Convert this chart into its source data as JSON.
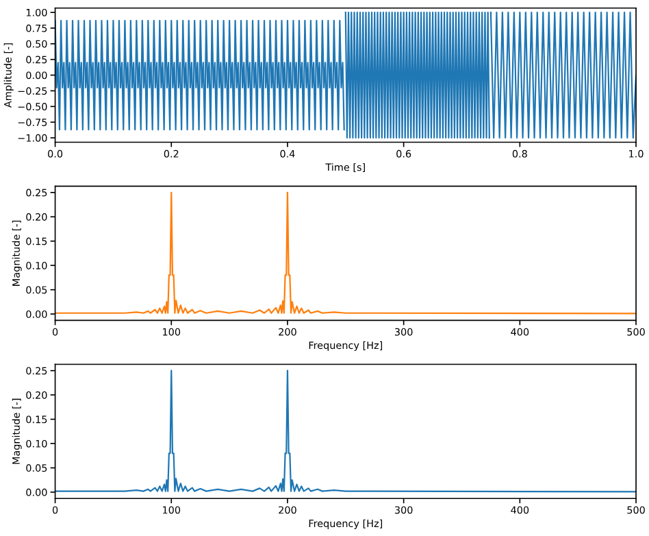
{
  "chart_data": [
    {
      "type": "line",
      "xlabel": "Time [s]",
      "ylabel": "Amplitude [-]",
      "xlim": [
        0,
        1
      ],
      "ylim": [
        -1.07,
        1.07
      ],
      "xticks": [
        {
          "value": 0,
          "label": "0.0"
        },
        {
          "value": 0.2,
          "label": "0.2"
        },
        {
          "value": 0.4,
          "label": "0.4"
        },
        {
          "value": 0.6,
          "label": "0.6"
        },
        {
          "value": 0.8,
          "label": "0.8"
        },
        {
          "value": 1,
          "label": "1.0"
        }
      ],
      "yticks": [
        {
          "value": -1,
          "label": "−1.00"
        },
        {
          "value": -0.75,
          "label": "−0.75"
        },
        {
          "value": -0.5,
          "label": "−0.50"
        },
        {
          "value": -0.25,
          "label": "−0.25"
        },
        {
          "value": 0,
          "label": "0.00"
        },
        {
          "value": 0.25,
          "label": "0.25"
        },
        {
          "value": 0.5,
          "label": "0.50"
        },
        {
          "value": 0.75,
          "label": "0.75"
        },
        {
          "value": 1,
          "label": "1.00"
        }
      ],
      "grid": false,
      "series": [
        {
          "color": "#1f77b4",
          "x": [
            0,
            0.0025,
            0.005,
            0.0075,
            0.01,
            0.0125,
            0.015,
            0.0175,
            0.02,
            0.0225,
            0.025,
            0.0275,
            0.03,
            0.0325,
            0.035,
            0.0375,
            0.04,
            0.0425,
            0.045,
            0.0475,
            0.05,
            0.0525,
            0.055,
            0.0575,
            0.06,
            0.0625,
            0.065,
            0.0675,
            0.07,
            0.0725,
            0.075,
            0.0775,
            0.08,
            0.0825,
            0.085,
            0.0875,
            0.09,
            0.0925,
            0.095,
            0.0975,
            0.1,
            0.1025,
            0.105,
            0.1075,
            0.11,
            0.1125,
            0.115,
            0.1175,
            0.12,
            0.1225,
            0.125,
            0.1275,
            0.13,
            0.1325,
            0.135,
            0.1375,
            0.14,
            0.1425,
            0.145,
            0.1475,
            0.15,
            0.1525,
            0.155,
            0.1575,
            0.16,
            0.1625,
            0.165,
            0.1675,
            0.17,
            0.1725,
            0.175,
            0.1775,
            0.18,
            0.1825,
            0.185,
            0.1875,
            0.19,
            0.1925,
            0.195,
            0.1975,
            0.2,
            0.2025,
            0.205,
            0.2075,
            0.21,
            0.2125,
            0.215,
            0.2175,
            0.22,
            0.2225,
            0.225,
            0.2275,
            0.23,
            0.2325,
            0.235,
            0.2375,
            0.24,
            0.2425,
            0.245,
            0.2475,
            0.25,
            0.2525,
            0.255,
            0.2575,
            0.26,
            0.2625,
            0.265,
            0.2675,
            0.27,
            0.2725,
            0.275,
            0.2775,
            0.28,
            0.2825,
            0.285,
            0.2875,
            0.29,
            0.2925,
            0.295,
            0.2975,
            0.3,
            0.3025,
            0.305,
            0.3075,
            0.31,
            0.3125,
            0.315,
            0.3175,
            0.32,
            0.3225,
            0.325,
            0.3275,
            0.33,
            0.3325,
            0.335,
            0.3375,
            0.34,
            0.3425,
            0.345,
            0.3475,
            0.35,
            0.3525,
            0.355,
            0.3575,
            0.36,
            0.3625,
            0.365,
            0.3675,
            0.37,
            0.3725,
            0.375,
            0.3775,
            0.38,
            0.3825,
            0.385,
            0.3875,
            0.39,
            0.3925,
            0.395,
            0.3975,
            0.4,
            0.4025,
            0.405,
            0.4075,
            0.41,
            0.4125,
            0.415,
            0.4175,
            0.42,
            0.4225,
            0.425,
            0.4275,
            0.43,
            0.4325,
            0.435,
            0.4375,
            0.44,
            0.4425,
            0.445,
            0.4475,
            0.45,
            0.4525,
            0.455,
            0.4575,
            0.46,
            0.4625,
            0.465,
            0.4675,
            0.47,
            0.4725,
            0.475,
            0.4775,
            0.48,
            0.4825,
            0.485,
            0.4875,
            0.49,
            0.4925,
            0.495,
            0.4975
          ],
          "values": [
            0.87,
            -0.2,
            0.2,
            -0.87,
            0.87,
            -0.2,
            0.2,
            -0.87,
            0.87,
            -0.2,
            0.2,
            -0.87,
            0.87,
            -0.2,
            0.2,
            -0.87,
            0.87,
            -0.2,
            0.2,
            -0.87,
            0.87,
            -0.2,
            0.2,
            -0.87,
            0.87,
            -0.2,
            0.2,
            -0.87,
            0.87,
            -0.2,
            0.2,
            -0.87,
            0.87,
            -0.2,
            0.2,
            -0.87,
            0.87,
            -0.2,
            0.2,
            -0.87,
            0.87,
            -0.2,
            0.2,
            -0.87,
            0.87,
            -0.2,
            0.2,
            -0.87,
            0.87,
            -0.2,
            0.2,
            -0.87,
            0.87,
            -0.2,
            0.2,
            -0.87,
            0.87,
            -0.2,
            0.2,
            -0.87,
            0.87,
            -0.2,
            0.2,
            -0.87,
            0.87,
            -0.2,
            0.2,
            -0.87,
            0.87,
            -0.2,
            0.2,
            -0.87,
            0.87,
            -0.2,
            0.2,
            -0.87,
            0.87,
            -0.2,
            0.2,
            -0.87,
            0.87,
            -0.2,
            0.2,
            -0.87,
            0.87,
            -0.2,
            0.2,
            -0.87,
            0.87,
            -0.2,
            0.2,
            -0.87,
            0.87,
            -0.2,
            0.2,
            -0.87,
            0.87,
            -0.2,
            0.2,
            -0.87,
            0.87,
            -0.2,
            0.2,
            -0.87,
            0.87,
            -0.2,
            0.2,
            -0.87,
            0.87,
            -0.2,
            0.2,
            -0.87,
            0.87,
            -0.2,
            0.2,
            -0.87,
            0.87,
            -0.2,
            0.2,
            -0.87,
            0.87,
            -0.2,
            0.2,
            -0.87,
            0.87,
            -0.2,
            0.2,
            -0.87,
            0.87,
            -0.2,
            0.2,
            -0.87,
            0.87,
            -0.2,
            0.2,
            -0.87,
            0.87,
            -0.2,
            0.2,
            -0.87,
            0.87,
            -0.2,
            0.2,
            -0.87,
            0.87,
            -0.2,
            0.2,
            -0.87,
            0.87,
            -0.2,
            0.2,
            -0.87,
            0.87,
            -0.2,
            0.2,
            -0.87,
            0.87,
            -0.2,
            0.2,
            -0.87,
            0.87,
            -0.2,
            0.2,
            -0.87,
            0.87,
            -0.2,
            0.2,
            -0.87,
            0.87,
            -0.2,
            0.2,
            -0.87,
            0.87,
            -0.2,
            0.2,
            -0.87,
            0.87,
            -0.2,
            0.2,
            -0.87,
            0.87,
            -0.2,
            0.2,
            -0.87,
            0.87,
            -0.2,
            0.2,
            -0.87,
            0.87,
            -0.2,
            0.2,
            -0.87,
            0.87,
            -0.2,
            0.2,
            -0.87,
            0.87,
            -0.2,
            0.2,
            -0.87
          ]
        },
        {
          "color": "#1f77b4",
          "x": [
            0.5,
            0.5025,
            0.505,
            0.5075,
            0.51,
            0.5125,
            0.515,
            0.5175,
            0.52,
            0.5225,
            0.525,
            0.5275,
            0.53,
            0.5325,
            0.535,
            0.5375,
            0.54,
            0.5425,
            0.545,
            0.5475,
            0.55,
            0.5525,
            0.555,
            0.5575,
            0.56,
            0.5625,
            0.565,
            0.5675,
            0.57,
            0.5725,
            0.575,
            0.5775,
            0.58,
            0.5825,
            0.585,
            0.5875,
            0.59,
            0.5925,
            0.595,
            0.5975,
            0.6,
            0.6025,
            0.605,
            0.6075,
            0.61,
            0.6125,
            0.615,
            0.6175,
            0.62,
            0.6225,
            0.625,
            0.6275,
            0.63,
            0.6325,
            0.635,
            0.6375,
            0.64,
            0.6425,
            0.645,
            0.6475,
            0.65,
            0.6525,
            0.655,
            0.6575,
            0.66,
            0.6625,
            0.665,
            0.6675,
            0.67,
            0.6725,
            0.675,
            0.6775,
            0.68,
            0.6825,
            0.685,
            0.6875,
            0.69,
            0.6925,
            0.695,
            0.6975,
            0.7,
            0.7025,
            0.705,
            0.7075,
            0.71,
            0.7125,
            0.715,
            0.7175,
            0.72,
            0.7225,
            0.725,
            0.7275,
            0.73,
            0.7325,
            0.735,
            0.7375,
            0.74,
            0.7425,
            0.745,
            0.7475
          ],
          "values": [
            1,
            -1,
            1,
            -1,
            1,
            -1,
            1,
            -1,
            1,
            -1,
            1,
            -1,
            1,
            -1,
            1,
            -1,
            1,
            -1,
            1,
            -1,
            1,
            -1,
            1,
            -1,
            1,
            -1,
            1,
            -1,
            1,
            -1,
            1,
            -1,
            1,
            -1,
            1,
            -1,
            1,
            -1,
            1,
            -1,
            1,
            -1,
            1,
            -1,
            1,
            -1,
            1,
            -1,
            1,
            -1,
            1,
            -1,
            1,
            -1,
            1,
            -1,
            1,
            -1,
            1,
            -1,
            1,
            -1,
            1,
            -1,
            1,
            -1,
            1,
            -1,
            1,
            -1,
            1,
            -1,
            1,
            -1,
            1,
            -1,
            1,
            -1,
            1,
            -1,
            1,
            -1,
            1,
            -1,
            1,
            -1,
            1,
            -1,
            1,
            -1,
            1,
            -1,
            1,
            -1,
            1,
            -1,
            1,
            -1,
            1,
            -1
          ]
        },
        {
          "color": "#1f77b4",
          "x": [
            0.75,
            0.755,
            0.76,
            0.765,
            0.77,
            0.775,
            0.78,
            0.785,
            0.79,
            0.795,
            0.8,
            0.805,
            0.81,
            0.815,
            0.82,
            0.825,
            0.83,
            0.835,
            0.84,
            0.845,
            0.85,
            0.855,
            0.86,
            0.865,
            0.87,
            0.875,
            0.88,
            0.885,
            0.89,
            0.895,
            0.9,
            0.905,
            0.91,
            0.915,
            0.92,
            0.925,
            0.93,
            0.935,
            0.94,
            0.945,
            0.95,
            0.955,
            0.96,
            0.965,
            0.97,
            0.975,
            0.98,
            0.985,
            0.99,
            0.995,
            1
          ],
          "values": [
            1,
            -1,
            1,
            -1,
            1,
            -1,
            1,
            -1,
            1,
            -1,
            1,
            -1,
            1,
            -1,
            1,
            -1,
            1,
            -1,
            1,
            -1,
            1,
            -1,
            1,
            -1,
            1,
            -1,
            1,
            -1,
            1,
            -1,
            1,
            -1,
            1,
            -1,
            1,
            -1,
            1,
            -1,
            1,
            -1,
            1,
            -1,
            1,
            -1,
            1,
            -1,
            1,
            -1,
            1,
            -1,
            0
          ]
        }
      ]
    },
    {
      "type": "line",
      "xlabel": "Frequency [Hz]",
      "ylabel": "Magnitude [-]",
      "xlim": [
        0,
        500
      ],
      "ylim": [
        -0.013,
        0.263
      ],
      "xticks": [
        0,
        100,
        200,
        300,
        400,
        500
      ],
      "yticks": [
        {
          "value": 0,
          "label": "0.00"
        },
        {
          "value": 0.05,
          "label": "0.05"
        },
        {
          "value": 0.1,
          "label": "0.10"
        },
        {
          "value": 0.15,
          "label": "0.15"
        },
        {
          "value": 0.2,
          "label": "0.20"
        },
        {
          "value": 0.25,
          "label": "0.25"
        }
      ],
      "grid": false,
      "series": [
        {
          "color": "#ff7f0e",
          "x": [
            0,
            60,
            70,
            76,
            80,
            82,
            86,
            88,
            90,
            92,
            94,
            95,
            96,
            97,
            98,
            99,
            100,
            101,
            102,
            103,
            104,
            106,
            108,
            110,
            112,
            114,
            118,
            120,
            125,
            130,
            140,
            150,
            160,
            170,
            176,
            180,
            184,
            186,
            190,
            192,
            194,
            195,
            196,
            197,
            198,
            199,
            200,
            201,
            202,
            203,
            204,
            206,
            208,
            210,
            212,
            214,
            218,
            220,
            226,
            230,
            240,
            250,
            270,
            500
          ],
          "values": [
            0.002,
            0.002,
            0.004,
            0.002,
            0.006,
            0.002,
            0.009,
            0.002,
            0.012,
            0.002,
            0.016,
            0.002,
            0.025,
            0.002,
            0.08,
            0.08,
            0.25,
            0.08,
            0.08,
            0.002,
            0.028,
            0.002,
            0.018,
            0.002,
            0.012,
            0.002,
            0.009,
            0.002,
            0.007,
            0.002,
            0.006,
            0.002,
            0.006,
            0.002,
            0.008,
            0.002,
            0.01,
            0.002,
            0.013,
            0.002,
            0.018,
            0.002,
            0.027,
            0.002,
            0.08,
            0.08,
            0.25,
            0.08,
            0.08,
            0.002,
            0.025,
            0.002,
            0.016,
            0.002,
            0.012,
            0.002,
            0.008,
            0.002,
            0.006,
            0.002,
            0.004,
            0.002,
            0.002,
            0.001
          ]
        }
      ]
    },
    {
      "type": "line",
      "xlabel": "Frequency [Hz]",
      "ylabel": "Magnitude [-]",
      "xlim": [
        0,
        500
      ],
      "ylim": [
        -0.013,
        0.263
      ],
      "xticks": [
        0,
        100,
        200,
        300,
        400,
        500
      ],
      "yticks": [
        {
          "value": 0,
          "label": "0.00"
        },
        {
          "value": 0.05,
          "label": "0.05"
        },
        {
          "value": 0.1,
          "label": "0.10"
        },
        {
          "value": 0.15,
          "label": "0.15"
        },
        {
          "value": 0.2,
          "label": "0.20"
        },
        {
          "value": 0.25,
          "label": "0.25"
        }
      ],
      "grid": false,
      "series": [
        {
          "color": "#1f77b4",
          "x": [
            0,
            60,
            70,
            76,
            80,
            82,
            86,
            88,
            90,
            92,
            94,
            95,
            96,
            97,
            98,
            99,
            100,
            101,
            102,
            103,
            104,
            106,
            108,
            110,
            112,
            114,
            118,
            120,
            125,
            130,
            140,
            150,
            160,
            170,
            176,
            180,
            184,
            186,
            190,
            192,
            194,
            195,
            196,
            197,
            198,
            199,
            200,
            201,
            202,
            203,
            204,
            206,
            208,
            210,
            212,
            214,
            218,
            220,
            226,
            230,
            240,
            250,
            270,
            500
          ],
          "values": [
            0.002,
            0.002,
            0.004,
            0.002,
            0.006,
            0.002,
            0.009,
            0.002,
            0.012,
            0.002,
            0.016,
            0.002,
            0.025,
            0.002,
            0.08,
            0.08,
            0.25,
            0.08,
            0.08,
            0.002,
            0.028,
            0.002,
            0.018,
            0.002,
            0.012,
            0.002,
            0.009,
            0.002,
            0.007,
            0.002,
            0.006,
            0.002,
            0.006,
            0.002,
            0.008,
            0.002,
            0.01,
            0.002,
            0.013,
            0.002,
            0.018,
            0.002,
            0.027,
            0.002,
            0.08,
            0.08,
            0.25,
            0.08,
            0.08,
            0.002,
            0.025,
            0.002,
            0.016,
            0.002,
            0.012,
            0.002,
            0.008,
            0.002,
            0.006,
            0.002,
            0.004,
            0.002,
            0.002,
            0.001
          ]
        }
      ]
    }
  ]
}
